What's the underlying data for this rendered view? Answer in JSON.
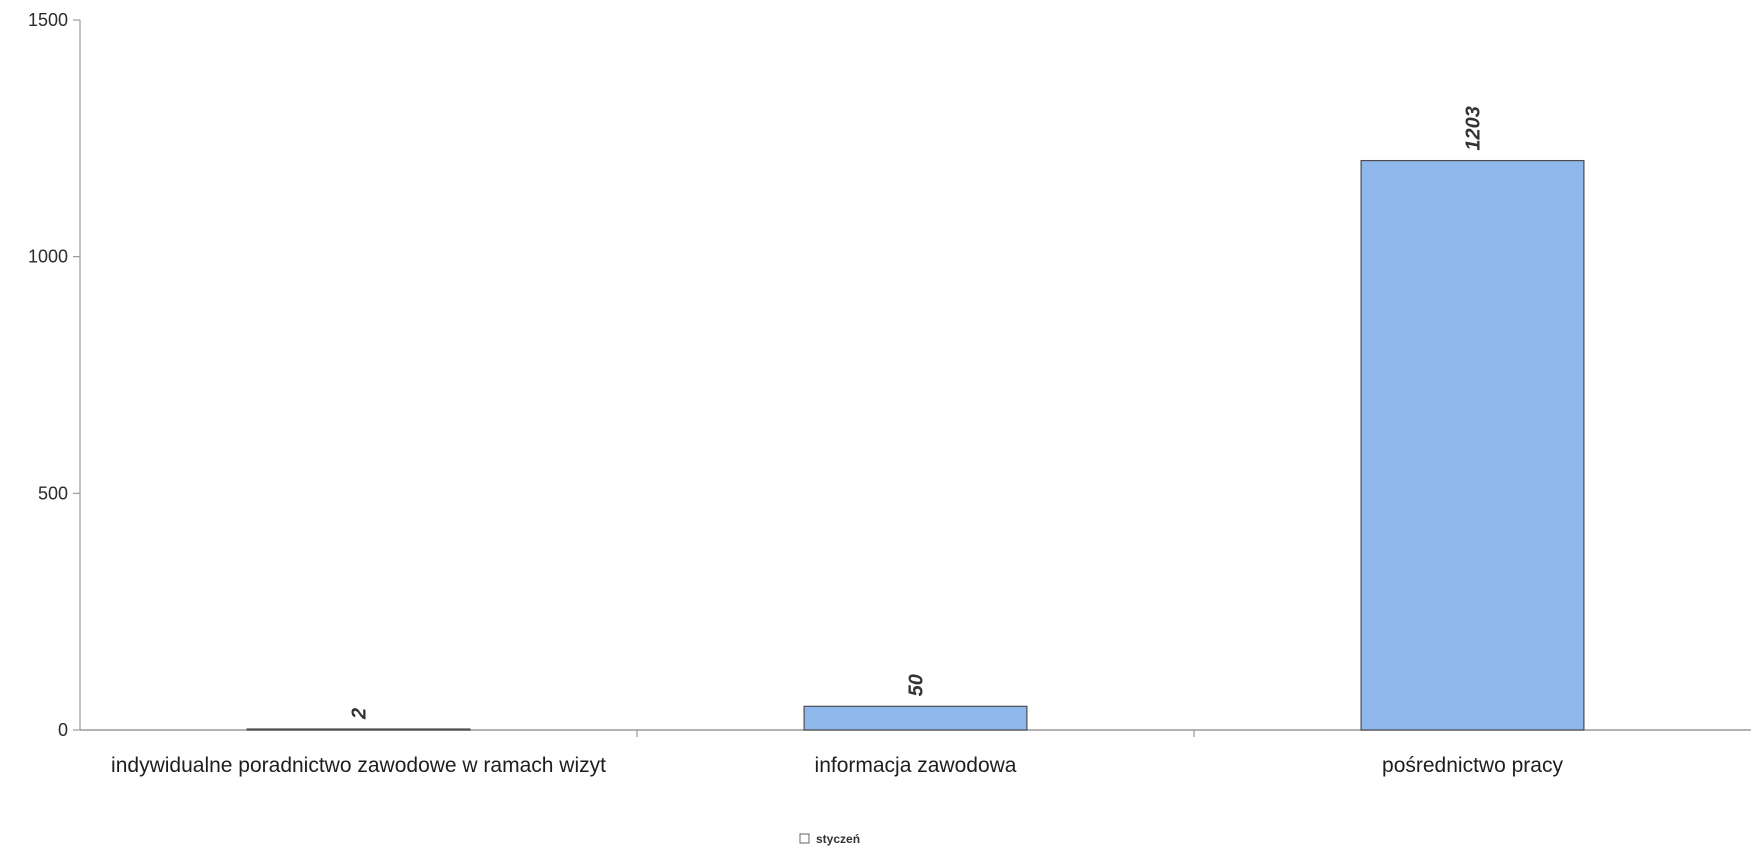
{
  "chart_data": {
    "type": "bar",
    "categories": [
      "indywidualne poradnictwo zawodowe w ramach wizyt",
      "informacja zawodowa",
      "pośrednictwo pracy"
    ],
    "series": [
      {
        "name": "styczeń",
        "values": [
          2,
          50,
          1203
        ]
      }
    ],
    "data_labels": [
      "2",
      "50",
      "1203"
    ],
    "yticks": [
      0,
      500,
      1000,
      1500
    ],
    "ytick_labels": [
      "0",
      "500",
      "1000",
      "1500"
    ],
    "ylim": [
      0,
      1500
    ],
    "grid": false,
    "legend_position": "bottom-center",
    "bar_color": "#8fb8ec",
    "bar_outline_color": "#4d4d4d"
  }
}
